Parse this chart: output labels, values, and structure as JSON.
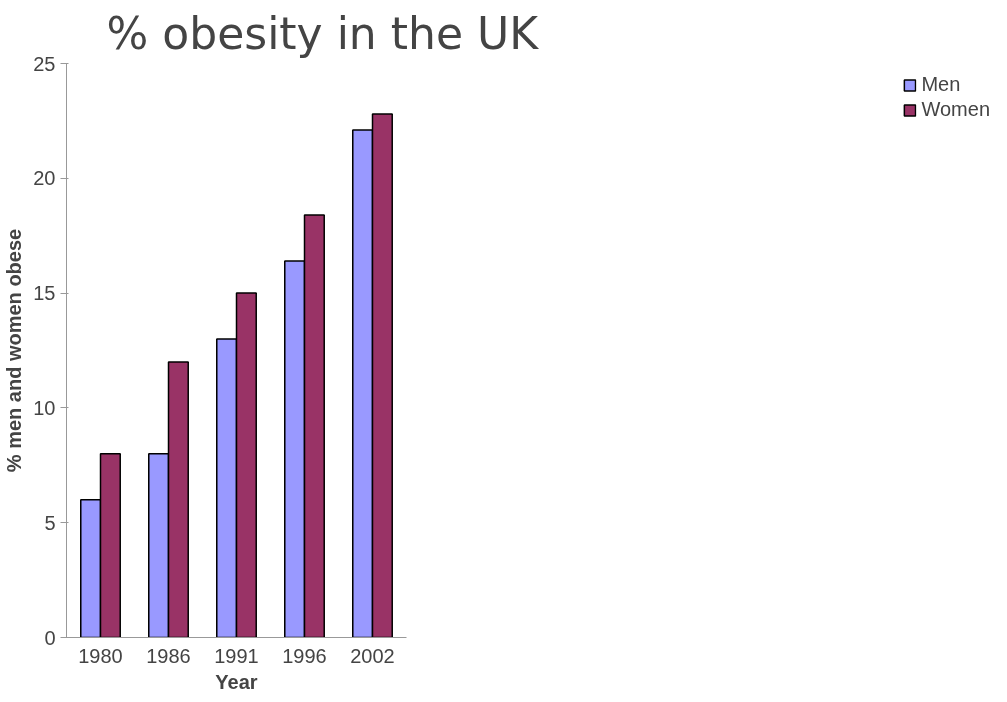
{
  "chart_data": {
    "type": "bar",
    "title": "% obesity in the UK",
    "xlabel": "Year",
    "ylabel": "% men and women obese",
    "categories": [
      "1980",
      "1986",
      "1991",
      "1996",
      "2002"
    ],
    "series": [
      {
        "name": "Men",
        "color": "#9999ff",
        "values": [
          6,
          8,
          13,
          16.4,
          22.1
        ]
      },
      {
        "name": "Women",
        "color": "#993366",
        "values": [
          8,
          12,
          15,
          18.4,
          22.8
        ]
      }
    ],
    "ylim": [
      0,
      25
    ],
    "yticks": [
      0,
      5,
      10,
      15,
      20,
      25
    ],
    "grid": false,
    "legend": "right"
  }
}
